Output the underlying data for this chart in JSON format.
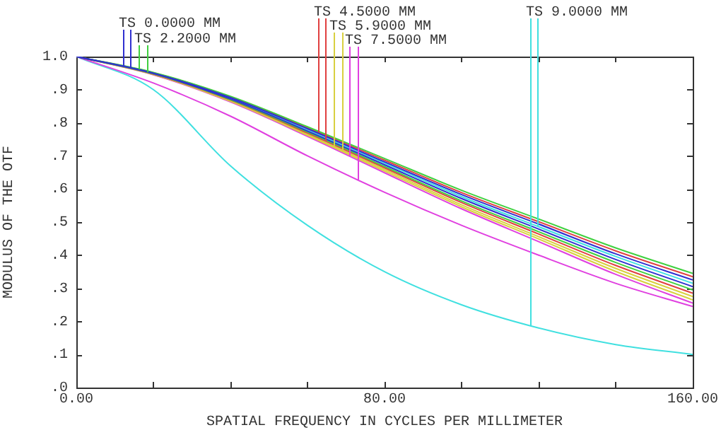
{
  "chart_data": {
    "type": "line",
    "xlabel": "SPATIAL FREQUENCY IN CYCLES PER MILLIMETER",
    "ylabel": "MODULUS OF THE OTF",
    "x": [
      0,
      20,
      40,
      60,
      80,
      100,
      120,
      140,
      160
    ],
    "xlim": [
      0,
      160
    ],
    "xticks": [
      {
        "value": 0,
        "label": "0.00"
      },
      {
        "value": 20,
        "label": null
      },
      {
        "value": 40,
        "label": null
      },
      {
        "value": 60,
        "label": null
      },
      {
        "value": 80,
        "label": "80.00"
      },
      {
        "value": 100,
        "label": null
      },
      {
        "value": 120,
        "label": null
      },
      {
        "value": 140,
        "label": null
      },
      {
        "value": 160,
        "label": "160.00"
      }
    ],
    "ylim": [
      0,
      1
    ],
    "yticks": [
      {
        "value": 0,
        "label": ".0"
      },
      {
        "value": 0.1,
        "label": ".1"
      },
      {
        "value": 0.2,
        "label": ".2"
      },
      {
        "value": 0.3,
        "label": ".3"
      },
      {
        "value": 0.4,
        "label": ".4"
      },
      {
        "value": 0.5,
        "label": ".5"
      },
      {
        "value": 0.6,
        "label": ".6"
      },
      {
        "value": 0.7,
        "label": ".7"
      },
      {
        "value": 0.8,
        "label": ".8"
      },
      {
        "value": 0.9,
        "label": ".9"
      },
      {
        "value": 1,
        "label": "1.0"
      }
    ],
    "grid": false,
    "legend": false,
    "marker": "none",
    "line_style": "solid",
    "series": [
      {
        "name": "TS 0.0000 MM",
        "color": "#3030d0",
        "values": [
          1,
          0.95,
          0.876,
          0.782,
          0.682,
          0.583,
          0.494,
          0.404,
          0.325
        ]
      },
      {
        "color": "#3030d0",
        "values": [
          1,
          0.949,
          0.872,
          0.775,
          0.673,
          0.571,
          0.479,
          0.387,
          0.305
        ]
      },
      {
        "name": "TS 2.2000 MM",
        "color": "#40d040",
        "values": [
          1,
          0.952,
          0.88,
          0.788,
          0.692,
          0.596,
          0.509,
          0.422,
          0.345
        ]
      },
      {
        "color": "#40d040",
        "values": [
          1,
          0.948,
          0.87,
          0.772,
          0.668,
          0.564,
          0.471,
          0.378,
          0.295
        ]
      },
      {
        "name": "TS 4.5000 MM",
        "color": "#e04040",
        "values": [
          1,
          0.951,
          0.878,
          0.785,
          0.687,
          0.589,
          0.501,
          0.413,
          0.335
        ]
      },
      {
        "color": "#e04040",
        "values": [
          1,
          0.947,
          0.869,
          0.769,
          0.664,
          0.559,
          0.464,
          0.369,
          0.285
        ]
      },
      {
        "name": "TS 5.9000 MM",
        "color": "#d8d040",
        "values": [
          1,
          0.947,
          0.867,
          0.765,
          0.659,
          0.552,
          0.456,
          0.36,
          0.275
        ]
      },
      {
        "color": "#d8d040",
        "values": [
          1,
          0.946,
          0.865,
          0.762,
          0.654,
          0.546,
          0.449,
          0.351,
          0.265
        ]
      },
      {
        "name": "TS 7.5000 MM",
        "color": "#e040e0",
        "values": [
          1,
          0.945,
          0.863,
          0.759,
          0.649,
          0.54,
          0.441,
          0.342,
          0.255
        ]
      },
      {
        "color": "#e040e0",
        "values": [
          1,
          0.92,
          0.82,
          0.7,
          0.59,
          0.49,
          0.4,
          0.315,
          0.245
        ]
      },
      {
        "name": "TS 9.0000 MM",
        "color": "#40e0e0",
        "values": [
          1,
          0.9,
          0.67,
          0.49,
          0.35,
          0.25,
          0.18,
          0.13,
          0.1
        ]
      },
      {
        "color": "#40e0e0",
        "values": [
          1,
          0.95,
          0.874,
          0.778,
          0.678,
          0.577,
          0.486,
          0.396,
          0.315
        ]
      }
    ]
  }
}
